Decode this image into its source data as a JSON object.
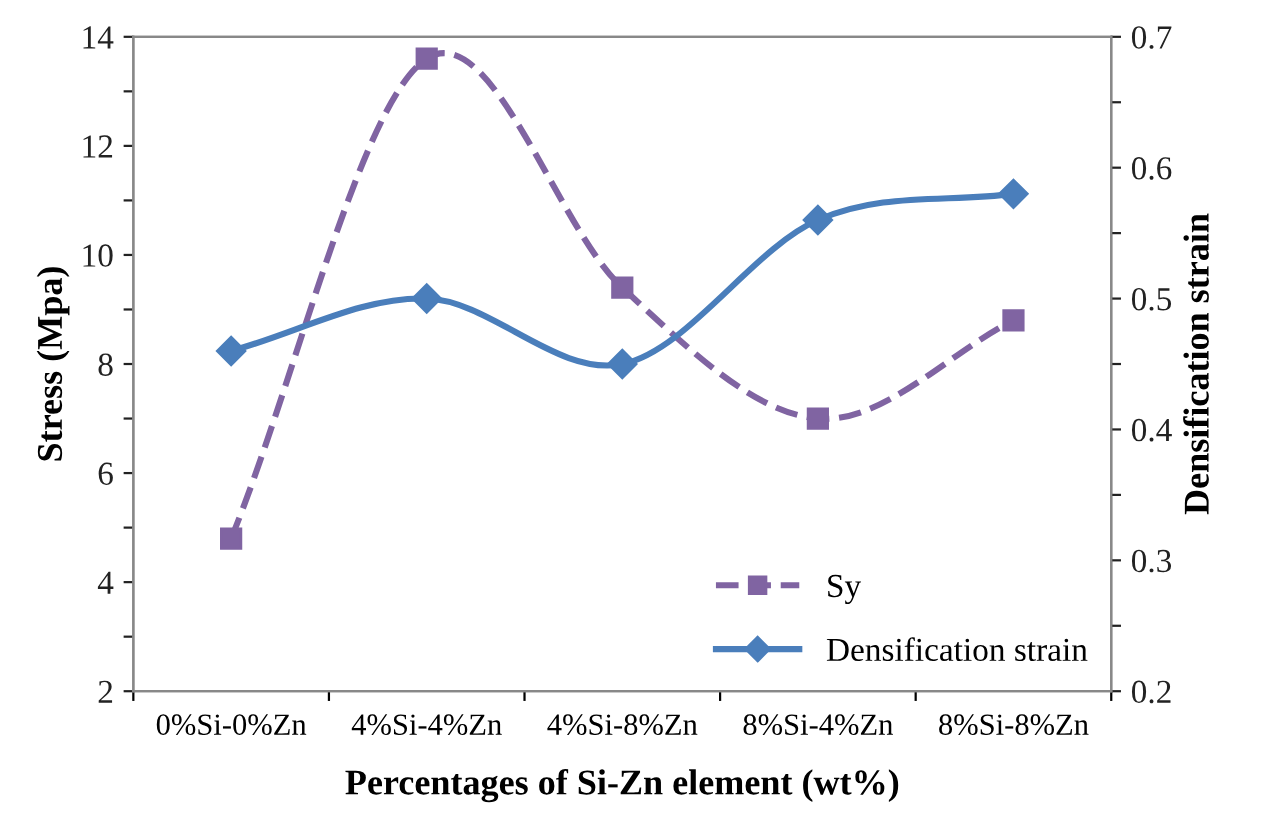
{
  "chart_data": {
    "type": "line",
    "xlabel": "Percentages of Si-Zn element (wt%)",
    "ylabel": "Stress (Mpa)",
    "y2label": "Densification strain",
    "categories": [
      "0%Si-0%Zn",
      "4%Si-4%Zn",
      "4%Si-8%Zn",
      "8%Si-4%Zn",
      "8%Si-8%Zn"
    ],
    "series": [
      {
        "name": "Sy",
        "color": "#8064a2",
        "values": [
          4.8,
          13.6,
          9.4,
          7.0,
          8.8
        ],
        "marker": "square",
        "line_style": "dashed"
      },
      {
        "name": "Densification strain",
        "color": "#4a7ebb",
        "values": [
          0.46,
          0.5,
          0.45,
          0.56,
          0.58
        ],
        "axis": "y2",
        "marker": "diamond",
        "line_style": "solid"
      }
    ],
    "ylim": [
      2,
      14
    ],
    "yticks": [
      2,
      {
        "value": 3,
        "label": null
      },
      4,
      {
        "value": 5,
        "label": null
      },
      6,
      {
        "value": 7,
        "label": null
      },
      8,
      {
        "value": 9,
        "label": null
      },
      10,
      {
        "value": 11,
        "label": null
      },
      12,
      {
        "value": 13,
        "label": null
      },
      14
    ],
    "y2lim": [
      0.2,
      0.7
    ],
    "y2ticks": [
      0.2,
      {
        "value": 0.25,
        "label": null
      },
      0.3,
      {
        "value": 0.35,
        "label": null
      },
      0.4,
      {
        "value": 0.45,
        "label": null
      },
      0.5,
      {
        "value": 0.55,
        "label": null
      },
      0.6,
      {
        "value": 0.65,
        "label": null
      },
      0.7
    ],
    "legend": "bottom right",
    "grid": false
  }
}
